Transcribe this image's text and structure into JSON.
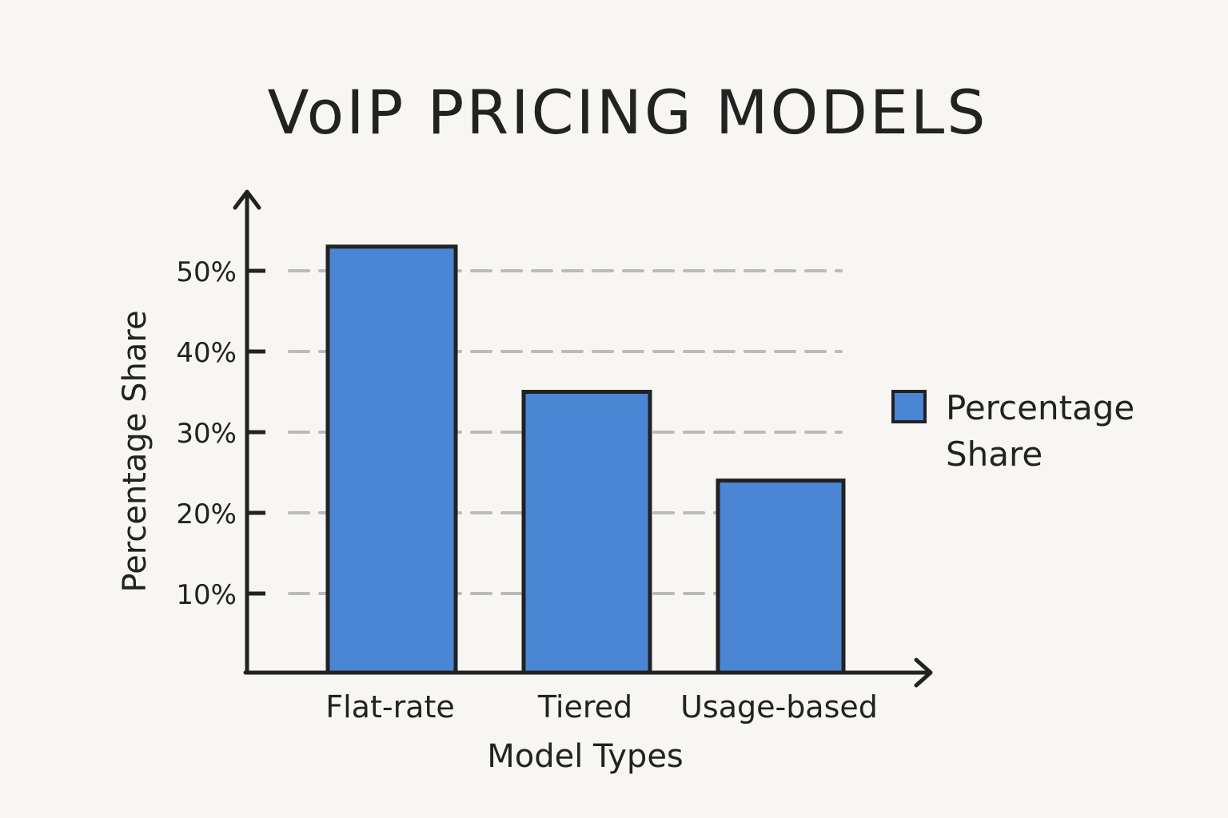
{
  "chart_data": {
    "type": "bar",
    "title": "VoIP PRICING MODELS",
    "xlabel": "Model Types",
    "ylabel": "Percentage Share",
    "categories": [
      "Flat-rate",
      "Tiered",
      "Usage-based"
    ],
    "values": [
      53,
      35,
      24
    ],
    "yticks": [
      10,
      20,
      30,
      40,
      50
    ],
    "ytick_labels": [
      "10%",
      "20%",
      "30%",
      "40%",
      "50%"
    ],
    "ylim": [
      0,
      58
    ],
    "grid": "dashed horizontal",
    "legend": {
      "label_line1": "Percentage",
      "label_line2": "Share",
      "placement": "right"
    },
    "colors": {
      "bar": "#4a86d4",
      "stroke": "#222222",
      "grid": "#bbbbbb"
    }
  }
}
